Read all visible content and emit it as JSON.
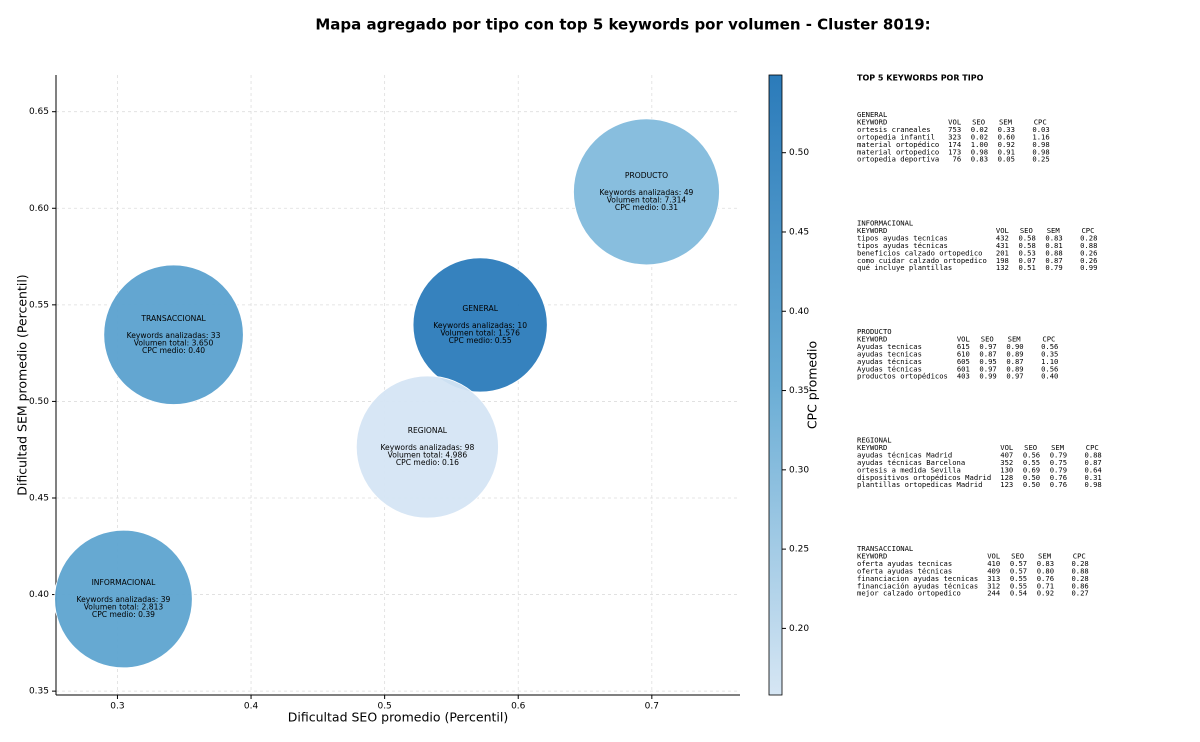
{
  "chart_data": {
    "type": "bubble",
    "title": "Mapa agregado por tipo con top 5 keywords por volumen - Cluster 8019:",
    "xlabel": "Dificultad SEO promedio (Percentil)",
    "ylabel": "Dificultad SEM promedio (Percentil)",
    "xlim": [
      0.254,
      0.766
    ],
    "ylim": [
      0.348,
      0.669
    ],
    "xticks": [
      0.3,
      0.4,
      0.5,
      0.6,
      0.7
    ],
    "yticks": [
      0.35,
      {
        "value": 0.4,
        "label": "0.40"
      },
      0.45,
      {
        "value": 0.5,
        "label": "0.50"
      },
      0.55,
      {
        "value": 0.6,
        "label": "0.60"
      },
      0.65
    ],
    "grid": true,
    "labels": [
      "GENERAL",
      "INFORMACIONAL",
      "PRODUCTO",
      "REGIONAL",
      "TRANSACCIONAL"
    ],
    "x": [
      0.5715,
      0.3045,
      0.696,
      0.532,
      0.342
    ],
    "y": [
      0.5396,
      0.3977,
      0.6085,
      0.4764,
      0.5345
    ],
    "volumes": [
      1576,
      2813,
      7314,
      4986,
      3650
    ],
    "cpc": [
      0.55,
      0.39,
      0.31,
      0.16,
      0.4
    ],
    "annotations": [
      [
        "Keywords analizadas: 10",
        "Volumen total: 1.576",
        "CPC medio: 0.55"
      ],
      [
        "Keywords analizadas: 39",
        "Volumen total: 2.813",
        "CPC medio: 0.39"
      ],
      [
        "Keywords analizadas: 49",
        "Volumen total: 7.314",
        "CPC medio: 0.31"
      ],
      [
        "Keywords analizadas: 98",
        "Volumen total: 4.986",
        "CPC medio: 0.16"
      ],
      [
        "Keywords analizadas: 33",
        "Volumen total: 3.650",
        "CPC medio: 0.40"
      ]
    ],
    "colorbar": {
      "label": "CPC promedio",
      "lim": [
        0.158,
        0.549
      ],
      "ticks": [
        {
          "value": 0.2,
          "label": "0.20"
        },
        0.25,
        {
          "value": 0.3,
          "label": "0.30"
        },
        0.35,
        {
          "value": 0.4,
          "label": "0.40"
        },
        0.45,
        {
          "value": 0.5,
          "label": "0.50"
        }
      ],
      "colormap": [
        "#d6e6f4",
        "#6aadd5",
        "#2b7bba"
      ]
    }
  },
  "keyword_panel": {
    "title": "TOP 5 KEYWORDS POR TIPO",
    "columns": [
      "KEYWORD",
      "VOL",
      "SEO",
      "SEM",
      "CPC"
    ],
    "groups": [
      {
        "name": "GENERAL",
        "rows": [
          [
            "ortesis craneales",
            "753",
            "0.02",
            "0.33",
            "0.03"
          ],
          [
            "ortopedia infantil",
            "323",
            "0.02",
            "0.60",
            "1.16"
          ],
          [
            "material ortopédico",
            "174",
            "1.00",
            "0.92",
            "0.98"
          ],
          [
            "material ortopedico",
            "173",
            "0.98",
            "0.91",
            "0.98"
          ],
          [
            "ortopedia deportiva",
            "76",
            "0.83",
            "0.05",
            "0.25"
          ]
        ]
      },
      {
        "name": "INFORMACIONAL",
        "rows": [
          [
            "tipos ayudas tecnicas",
            "432",
            "0.58",
            "0.83",
            "0.28"
          ],
          [
            "tipos ayudas técnicas",
            "431",
            "0.58",
            "0.81",
            "0.88"
          ],
          [
            "beneficios calzado ortopedico",
            "201",
            "0.53",
            "0.88",
            "0.26"
          ],
          [
            "como cuidar calzado ortopedico",
            "198",
            "0.07",
            "0.87",
            "0.26"
          ],
          [
            "qué incluye plantillas",
            "132",
            "0.51",
            "0.79",
            "0.99"
          ]
        ]
      },
      {
        "name": "PRODUCTO",
        "rows": [
          [
            "Ayudas tecnicas",
            "615",
            "0.97",
            "0.90",
            "0.56"
          ],
          [
            "ayudas tecnicas",
            "610",
            "0.87",
            "0.89",
            "0.35"
          ],
          [
            "ayudas técnicas",
            "605",
            "0.95",
            "0.87",
            "1.10"
          ],
          [
            "Ayudas técnicas",
            "601",
            "0.97",
            "0.89",
            "0.56"
          ],
          [
            "productos ortopédicos",
            "403",
            "0.99",
            "0.97",
            "0.40"
          ]
        ]
      },
      {
        "name": "REGIONAL",
        "rows": [
          [
            "ayudas técnicas Madrid",
            "407",
            "0.56",
            "0.79",
            "0.88"
          ],
          [
            "ayudas técnicas Barcelona",
            "352",
            "0.55",
            "0.75",
            "0.87"
          ],
          [
            "ortesis a medida Sevilla",
            "130",
            "0.69",
            "0.79",
            "0.64"
          ],
          [
            "dispositivos ortopédicos Madrid",
            "128",
            "0.50",
            "0.76",
            "0.31"
          ],
          [
            "plantillas ortopedicas Madrid",
            "123",
            "0.50",
            "0.76",
            "0.98"
          ]
        ]
      },
      {
        "name": "TRANSACCIONAL",
        "rows": [
          [
            "oferta ayudas tecnicas",
            "410",
            "0.57",
            "0.83",
            "0.28"
          ],
          [
            "oferta ayudas técnicas",
            "409",
            "0.57",
            "0.80",
            "0.88"
          ],
          [
            "financiacion ayudas tecnicas",
            "313",
            "0.55",
            "0.76",
            "0.28"
          ],
          [
            "financiación ayudas técnicas",
            "312",
            "0.55",
            "0.71",
            "0.86"
          ],
          [
            "mejor calzado ortopedico",
            "244",
            "0.54",
            "0.92",
            "0.27"
          ]
        ]
      }
    ]
  }
}
